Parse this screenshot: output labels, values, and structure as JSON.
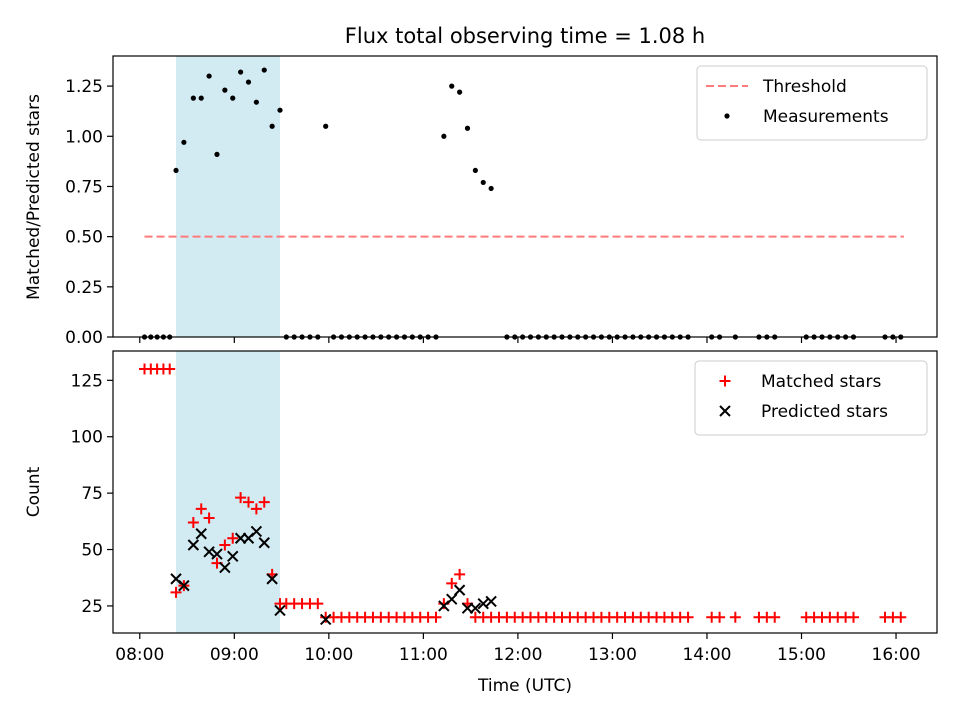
{
  "chart_data": [
    {
      "type": "scatter",
      "title": "Flux total observing time = 1.08 h",
      "xlabel": "",
      "ylabel": "Matched/Predicted stars",
      "x_ticks": [
        "08:00",
        "09:00",
        "10:00",
        "11:00",
        "12:00",
        "13:00",
        "14:00",
        "15:00",
        "16:00"
      ],
      "y_ticks": [
        "0.00",
        "0.25",
        "0.50",
        "0.75",
        "1.00",
        "1.25"
      ],
      "xlim": [
        "07:43",
        "16:26"
      ],
      "ylim": [
        0,
        1.4
      ],
      "highlight_span": [
        "08:23",
        "09:29"
      ],
      "highlight_color": "#add8e6",
      "threshold": {
        "name": "Threshold",
        "y": 0.5,
        "x_range": [
          "08:03",
          "16:05"
        ],
        "color": "#ff7a7a"
      },
      "legend_position": "upper right",
      "series": [
        {
          "name": "Measurements",
          "color": "#000000",
          "points": [
            [
              "08:03",
              0
            ],
            [
              "08:07",
              0
            ],
            [
              "08:11",
              0
            ],
            [
              "08:15",
              0
            ],
            [
              "08:19",
              0
            ],
            [
              "08:23",
              0.83
            ],
            [
              "08:28",
              0.97
            ],
            [
              "08:34",
              1.19
            ],
            [
              "08:39",
              1.19
            ],
            [
              "08:44",
              1.3
            ],
            [
              "08:49",
              0.91
            ],
            [
              "08:54",
              1.23
            ],
            [
              "08:59",
              1.19
            ],
            [
              "09:04",
              1.32
            ],
            [
              "09:09",
              1.27
            ],
            [
              "09:14",
              1.17
            ],
            [
              "09:19",
              1.33
            ],
            [
              "09:24",
              1.05
            ],
            [
              "09:29",
              1.13
            ],
            [
              "09:33",
              0
            ],
            [
              "09:38",
              0
            ],
            [
              "09:43",
              0
            ],
            [
              "09:48",
              0
            ],
            [
              "09:53",
              0
            ],
            [
              "09:58",
              1.05
            ],
            [
              "10:03",
              0
            ],
            [
              "10:08",
              0
            ],
            [
              "10:13",
              0
            ],
            [
              "10:18",
              0
            ],
            [
              "10:23",
              0
            ],
            [
              "10:28",
              0
            ],
            [
              "10:33",
              0
            ],
            [
              "10:38",
              0
            ],
            [
              "10:43",
              0
            ],
            [
              "10:48",
              0
            ],
            [
              "10:53",
              0
            ],
            [
              "10:58",
              0
            ],
            [
              "11:03",
              0
            ],
            [
              "11:08",
              0
            ],
            [
              "11:13",
              1.0
            ],
            [
              "11:18",
              1.25
            ],
            [
              "11:23",
              1.22
            ],
            [
              "11:28",
              1.04
            ],
            [
              "11:33",
              0.83
            ],
            [
              "11:38",
              0.77
            ],
            [
              "11:43",
              0.74
            ],
            [
              "11:53",
              0
            ],
            [
              "11:58",
              0
            ],
            [
              "12:03",
              0
            ],
            [
              "12:08",
              0
            ],
            [
              "12:13",
              0
            ],
            [
              "12:18",
              0
            ],
            [
              "12:23",
              0
            ],
            [
              "12:28",
              0
            ],
            [
              "12:33",
              0
            ],
            [
              "12:38",
              0
            ],
            [
              "12:43",
              0
            ],
            [
              "12:48",
              0
            ],
            [
              "12:53",
              0
            ],
            [
              "12:58",
              0
            ],
            [
              "13:03",
              0
            ],
            [
              "13:08",
              0
            ],
            [
              "13:13",
              0
            ],
            [
              "13:18",
              0
            ],
            [
              "13:23",
              0
            ],
            [
              "13:28",
              0
            ],
            [
              "13:33",
              0
            ],
            [
              "13:38",
              0
            ],
            [
              "13:43",
              0
            ],
            [
              "13:48",
              0
            ],
            [
              "14:03",
              0
            ],
            [
              "14:08",
              0
            ],
            [
              "14:18",
              0
            ],
            [
              "14:33",
              0
            ],
            [
              "14:38",
              0
            ],
            [
              "14:43",
              0
            ],
            [
              "15:03",
              0
            ],
            [
              "15:08",
              0
            ],
            [
              "15:13",
              0
            ],
            [
              "15:18",
              0
            ],
            [
              "15:23",
              0
            ],
            [
              "15:28",
              0
            ],
            [
              "15:33",
              0
            ],
            [
              "15:53",
              0
            ],
            [
              "15:58",
              0
            ],
            [
              "16:03",
              0
            ]
          ]
        }
      ]
    },
    {
      "type": "scatter",
      "title": "",
      "xlabel": "Time (UTC)",
      "ylabel": "Count",
      "x_ticks": [
        "08:00",
        "09:00",
        "10:00",
        "11:00",
        "12:00",
        "13:00",
        "14:00",
        "15:00",
        "16:00"
      ],
      "y_ticks": [
        "25",
        "50",
        "75",
        "100",
        "125"
      ],
      "xlim": [
        "07:43",
        "16:26"
      ],
      "ylim": [
        13,
        138
      ],
      "highlight_span": [
        "08:23",
        "09:29"
      ],
      "highlight_color": "#add8e6",
      "legend_position": "upper right",
      "series": [
        {
          "name": "Matched stars",
          "color": "#ff0000",
          "marker": "plus",
          "points": [
            [
              "08:03",
              130
            ],
            [
              "08:07",
              130
            ],
            [
              "08:11",
              130
            ],
            [
              "08:15",
              130
            ],
            [
              "08:19",
              130
            ],
            [
              "08:23",
              31
            ],
            [
              "08:28",
              34
            ],
            [
              "08:34",
              62
            ],
            [
              "08:39",
              68
            ],
            [
              "08:44",
              64
            ],
            [
              "08:49",
              44
            ],
            [
              "08:54",
              52
            ],
            [
              "08:59",
              55
            ],
            [
              "09:04",
              73
            ],
            [
              "09:09",
              71
            ],
            [
              "09:14",
              68
            ],
            [
              "09:19",
              71
            ],
            [
              "09:24",
              39
            ],
            [
              "09:29",
              26
            ],
            [
              "09:33",
              26
            ],
            [
              "09:38",
              26
            ],
            [
              "09:43",
              26
            ],
            [
              "09:48",
              26
            ],
            [
              "09:53",
              26
            ],
            [
              "09:58",
              20
            ],
            [
              "10:03",
              20
            ],
            [
              "10:08",
              20
            ],
            [
              "10:13",
              20
            ],
            [
              "10:18",
              20
            ],
            [
              "10:23",
              20
            ],
            [
              "10:28",
              20
            ],
            [
              "10:33",
              20
            ],
            [
              "10:38",
              20
            ],
            [
              "10:43",
              20
            ],
            [
              "10:48",
              20
            ],
            [
              "10:53",
              20
            ],
            [
              "10:58",
              20
            ],
            [
              "11:03",
              20
            ],
            [
              "11:08",
              20
            ],
            [
              "11:13",
              26
            ],
            [
              "11:18",
              35
            ],
            [
              "11:23",
              39
            ],
            [
              "11:28",
              26
            ],
            [
              "11:33",
              20
            ],
            [
              "11:38",
              20
            ],
            [
              "11:43",
              20
            ],
            [
              "11:48",
              20
            ],
            [
              "11:53",
              20
            ],
            [
              "11:58",
              20
            ],
            [
              "12:03",
              20
            ],
            [
              "12:08",
              20
            ],
            [
              "12:13",
              20
            ],
            [
              "12:18",
              20
            ],
            [
              "12:23",
              20
            ],
            [
              "12:28",
              20
            ],
            [
              "12:33",
              20
            ],
            [
              "12:38",
              20
            ],
            [
              "12:43",
              20
            ],
            [
              "12:48",
              20
            ],
            [
              "12:53",
              20
            ],
            [
              "12:58",
              20
            ],
            [
              "13:03",
              20
            ],
            [
              "13:08",
              20
            ],
            [
              "13:13",
              20
            ],
            [
              "13:18",
              20
            ],
            [
              "13:23",
              20
            ],
            [
              "13:28",
              20
            ],
            [
              "13:33",
              20
            ],
            [
              "13:38",
              20
            ],
            [
              "13:43",
              20
            ],
            [
              "13:48",
              20
            ],
            [
              "14:03",
              20
            ],
            [
              "14:08",
              20
            ],
            [
              "14:18",
              20
            ],
            [
              "14:33",
              20
            ],
            [
              "14:38",
              20
            ],
            [
              "14:43",
              20
            ],
            [
              "15:03",
              20
            ],
            [
              "15:08",
              20
            ],
            [
              "15:13",
              20
            ],
            [
              "15:18",
              20
            ],
            [
              "15:23",
              20
            ],
            [
              "15:28",
              20
            ],
            [
              "15:33",
              20
            ],
            [
              "15:53",
              20
            ],
            [
              "15:58",
              20
            ],
            [
              "16:03",
              20
            ]
          ]
        },
        {
          "name": "Predicted stars",
          "color": "#000000",
          "marker": "x",
          "points": [
            [
              "08:23",
              37
            ],
            [
              "08:28",
              34
            ],
            [
              "08:34",
              52
            ],
            [
              "08:39",
              57
            ],
            [
              "08:44",
              49
            ],
            [
              "08:49",
              48
            ],
            [
              "08:54",
              42
            ],
            [
              "08:59",
              47
            ],
            [
              "09:04",
              55
            ],
            [
              "09:09",
              55
            ],
            [
              "09:14",
              58
            ],
            [
              "09:19",
              53
            ],
            [
              "09:24",
              37
            ],
            [
              "09:29",
              23
            ],
            [
              "09:58",
              19
            ],
            [
              "11:13",
              25
            ],
            [
              "11:18",
              28
            ],
            [
              "11:23",
              32
            ],
            [
              "11:28",
              24
            ],
            [
              "11:33",
              24
            ],
            [
              "11:38",
              26
            ],
            [
              "11:43",
              27
            ]
          ]
        }
      ]
    }
  ]
}
